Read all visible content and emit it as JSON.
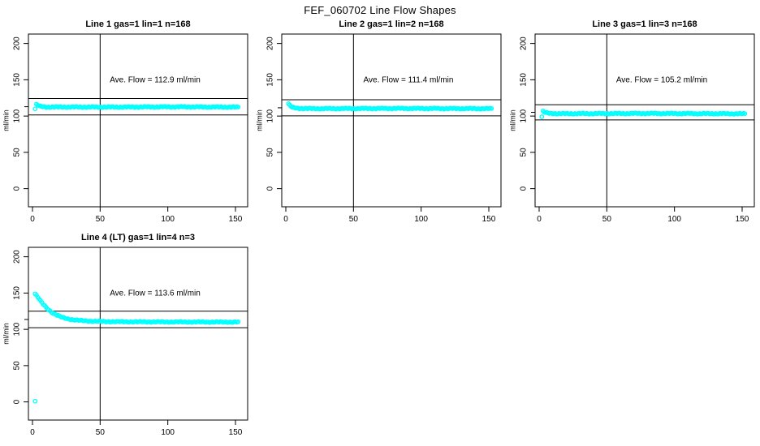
{
  "page_title": "FEF_060702  Line Flow Shapes",
  "colors": {
    "data": "#00ffff",
    "axis": "#000000",
    "background": "#ffffff",
    "text": "#000000"
  },
  "chart_data": [
    {
      "type": "scatter",
      "title": "Line 1 gas=1 lin=1 n=168",
      "annotation": "Ave. Flow =  112.9  ml/min",
      "ave_flow": 112.9,
      "n": 168,
      "xlabel": "",
      "ylabel": "ml/min",
      "x_ticks": [
        0,
        50,
        100,
        150
      ],
      "y_ticks": [
        0,
        50,
        100,
        150,
        200
      ],
      "xlim": [
        -3,
        159
      ],
      "ylim": [
        -25,
        213
      ],
      "vline_x": 50,
      "hlines": [
        124.2,
        101.6
      ],
      "grid": false,
      "legend": null,
      "marker": "open-circle",
      "series": {
        "x_start": 2,
        "x_end": 152,
        "profile": [
          [
            2,
            110
          ],
          [
            2.7,
            116
          ],
          [
            4,
            115
          ],
          [
            6,
            113.2
          ],
          [
            10,
            112.5
          ],
          [
            60,
            112.4
          ],
          [
            110,
            112.7
          ],
          [
            152,
            112.3
          ]
        ]
      },
      "outliers": []
    },
    {
      "type": "scatter",
      "title": "Line 2 gas=1 lin=2 n=168",
      "annotation": "Ave. Flow =  111.4  ml/min",
      "ave_flow": 111.4,
      "n": 168,
      "xlabel": "",
      "ylabel": "ml/min",
      "x_ticks": [
        0,
        50,
        100,
        150
      ],
      "y_ticks": [
        0,
        50,
        100,
        150,
        200
      ],
      "xlim": [
        -3,
        159
      ],
      "ylim": [
        -25,
        213
      ],
      "vline_x": 50,
      "hlines": [
        122.5,
        100.3
      ],
      "grid": false,
      "legend": null,
      "marker": "open-circle",
      "series": {
        "x_start": 2,
        "x_end": 152,
        "profile": [
          [
            2,
            117
          ],
          [
            3,
            114.5
          ],
          [
            5,
            111.8
          ],
          [
            9,
            110.6
          ],
          [
            20,
            110.2
          ],
          [
            80,
            110.5
          ],
          [
            152,
            110.2
          ]
        ]
      },
      "outliers": []
    },
    {
      "type": "scatter",
      "title": "Line 3 gas=1 lin=3 n=168",
      "annotation": "Ave. Flow =  105.2  ml/min",
      "ave_flow": 105.2,
      "n": 168,
      "xlabel": "",
      "ylabel": "ml/min",
      "x_ticks": [
        0,
        50,
        100,
        150
      ],
      "y_ticks": [
        0,
        50,
        100,
        150,
        200
      ],
      "xlim": [
        -3,
        159
      ],
      "ylim": [
        -25,
        213
      ],
      "vline_x": 50,
      "hlines": [
        115.7,
        94.7
      ],
      "grid": false,
      "legend": null,
      "marker": "open-circle",
      "series": {
        "x_start": 2,
        "x_end": 152,
        "profile": [
          [
            2,
            99
          ],
          [
            2.6,
            107
          ],
          [
            4,
            105.2
          ],
          [
            7,
            103.8
          ],
          [
            15,
            103.3
          ],
          [
            80,
            103.6
          ],
          [
            152,
            103.2
          ]
        ]
      },
      "outliers": []
    },
    {
      "type": "scatter",
      "title": "Line 4 (LT) gas=1 lin=4 n=3",
      "annotation": "Ave. Flow =  113.6  ml/min",
      "ave_flow": 113.6,
      "n": 3,
      "xlabel": "",
      "ylabel": "ml/min",
      "x_ticks": [
        0,
        50,
        100,
        150
      ],
      "y_ticks": [
        0,
        50,
        100,
        150,
        200
      ],
      "xlim": [
        -3,
        159
      ],
      "ylim": [
        -25,
        213
      ],
      "vline_x": 50,
      "hlines": [
        125.0,
        102.2
      ],
      "grid": false,
      "legend": null,
      "marker": "open-circle",
      "series": {
        "x_start": 2,
        "x_end": 152,
        "profile": [
          [
            2,
            149
          ],
          [
            3,
            146.5
          ],
          [
            4,
            144
          ],
          [
            5,
            141.5
          ],
          [
            6,
            139
          ],
          [
            8,
            134.5
          ],
          [
            10,
            130.5
          ],
          [
            12,
            127
          ],
          [
            15,
            122.5
          ],
          [
            18,
            119.5
          ],
          [
            22,
            116.5
          ],
          [
            26,
            114.5
          ],
          [
            30,
            113.2
          ],
          [
            36,
            112
          ],
          [
            44,
            111.2
          ],
          [
            55,
            110.7
          ],
          [
            70,
            110.4
          ],
          [
            100,
            110.2
          ],
          [
            152,
            110
          ]
        ]
      },
      "outliers": [
        [
          2,
          1
        ]
      ]
    }
  ]
}
